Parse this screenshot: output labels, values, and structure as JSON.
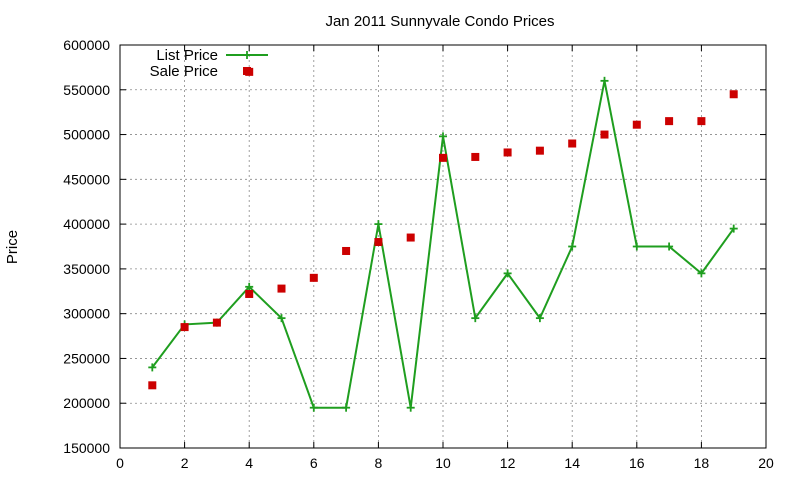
{
  "chart_data": {
    "type": "line",
    "title": "Jan 2011 Sunnyvale Condo Prices",
    "xlabel": "",
    "ylabel": "Price",
    "xlim": [
      0,
      20
    ],
    "ylim": [
      150000,
      600000
    ],
    "xticks": [
      0,
      2,
      4,
      6,
      8,
      10,
      12,
      14,
      16,
      18,
      20
    ],
    "yticks": [
      150000,
      200000,
      250000,
      300000,
      350000,
      400000,
      450000,
      500000,
      550000,
      600000
    ],
    "grid": true,
    "legend_position": "top-left",
    "series": [
      {
        "name": "List Price",
        "style": "lines+points",
        "marker": "plus",
        "color": "#1f9e1f",
        "x": [
          1,
          2,
          3,
          4,
          5,
          6,
          7,
          8,
          9,
          10,
          11,
          12,
          13,
          14,
          15,
          16,
          17,
          18,
          19
        ],
        "y": [
          240000,
          288000,
          290000,
          330000,
          295000,
          195000,
          195000,
          400000,
          195000,
          498000,
          295000,
          345000,
          295000,
          375000,
          560000,
          375000,
          375000,
          345000,
          395000
        ]
      },
      {
        "name": "Sale Price",
        "style": "points",
        "marker": "square",
        "color": "#cc0000",
        "x": [
          1,
          2,
          3,
          4,
          4,
          5,
          6,
          7,
          8,
          9,
          10,
          11,
          12,
          13,
          14,
          15,
          16,
          17,
          18,
          19
        ],
        "y": [
          220000,
          285000,
          290000,
          322000,
          570000,
          328000,
          340000,
          370000,
          380000,
          385000,
          474000,
          475000,
          480000,
          482000,
          490000,
          500000,
          511000,
          515000,
          515000,
          545000
        ]
      }
    ]
  }
}
